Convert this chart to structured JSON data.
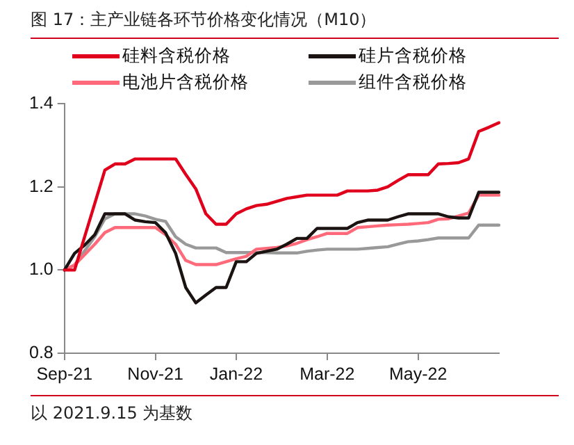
{
  "chart_data": {
    "type": "line",
    "title": "图 17：主产业链各环节价格变化情况（M10）",
    "categories": [
      "Sep-21",
      null,
      null,
      null,
      null,
      null,
      null,
      null,
      null,
      "Nov-21",
      null,
      null,
      null,
      null,
      null,
      null,
      null,
      "Jan-22",
      null,
      null,
      null,
      null,
      null,
      null,
      null,
      null,
      "Mar-22",
      null,
      null,
      null,
      null,
      null,
      null,
      null,
      null,
      "May-22",
      null,
      null,
      null,
      null,
      null,
      null,
      null,
      null
    ],
    "series": [
      {
        "name": "硅料含税价格",
        "color": "#e0001b",
        "values": [
          1.0,
          1.0,
          1.08,
          1.16,
          1.24,
          1.255,
          1.255,
          1.267,
          1.267,
          1.267,
          1.267,
          1.267,
          1.23,
          1.195,
          1.135,
          1.11,
          1.11,
          1.135,
          1.147,
          1.155,
          1.158,
          1.165,
          1.172,
          1.176,
          1.18,
          1.18,
          1.18,
          1.18,
          1.19,
          1.19,
          1.19,
          1.192,
          1.2,
          1.215,
          1.229,
          1.229,
          1.229,
          1.255,
          1.256,
          1.258,
          1.267,
          1.333,
          1.343,
          1.354
        ]
      },
      {
        "name": "硅片含税价格",
        "color": "#1a1311",
        "values": [
          1.0,
          1.04,
          1.06,
          1.085,
          1.135,
          1.135,
          1.135,
          1.12,
          1.116,
          1.114,
          1.09,
          1.04,
          0.958,
          0.921,
          0.94,
          0.958,
          0.958,
          1.02,
          1.02,
          1.04,
          1.045,
          1.05,
          1.062,
          1.076,
          1.076,
          1.1,
          1.1,
          1.1,
          1.1,
          1.114,
          1.12,
          1.12,
          1.12,
          1.128,
          1.135,
          1.135,
          1.135,
          1.135,
          1.128,
          1.125,
          1.125,
          1.187,
          1.187,
          1.187
        ]
      },
      {
        "name": "电池片含税价格",
        "color": "#ff6a7a",
        "values": [
          1.0,
          1.012,
          1.037,
          1.062,
          1.09,
          1.102,
          1.102,
          1.102,
          1.102,
          1.102,
          1.085,
          1.062,
          1.023,
          1.013,
          1.013,
          1.013,
          1.02,
          1.027,
          1.033,
          1.05,
          1.052,
          1.054,
          1.058,
          1.064,
          1.073,
          1.08,
          1.088,
          1.088,
          1.088,
          1.102,
          1.104,
          1.106,
          1.108,
          1.109,
          1.11,
          1.112,
          1.114,
          1.122,
          1.123,
          1.13,
          1.137,
          1.18,
          1.18,
          1.18
        ]
      },
      {
        "name": "组件含税价格",
        "color": "#999999",
        "values": [
          1.0,
          1.012,
          1.046,
          1.08,
          1.123,
          1.135,
          1.135,
          1.135,
          1.13,
          1.122,
          1.117,
          1.08,
          1.062,
          1.053,
          1.053,
          1.053,
          1.042,
          1.042,
          1.042,
          1.042,
          1.042,
          1.041,
          1.041,
          1.041,
          1.045,
          1.048,
          1.05,
          1.05,
          1.05,
          1.05,
          1.052,
          1.054,
          1.056,
          1.062,
          1.068,
          1.07,
          1.073,
          1.077,
          1.077,
          1.077,
          1.077,
          1.108,
          1.108,
          1.108
        ]
      }
    ],
    "ylim": [
      0.8,
      1.4
    ],
    "yticks": [
      0.8,
      {
        "value": 1,
        "label": "1.0"
      },
      1.2,
      1.4
    ],
    "grid": false,
    "legend": "top",
    "marker": "none",
    "line_style": "solid",
    "annotations": [
      "以 2021.9.15 为基数"
    ]
  }
}
